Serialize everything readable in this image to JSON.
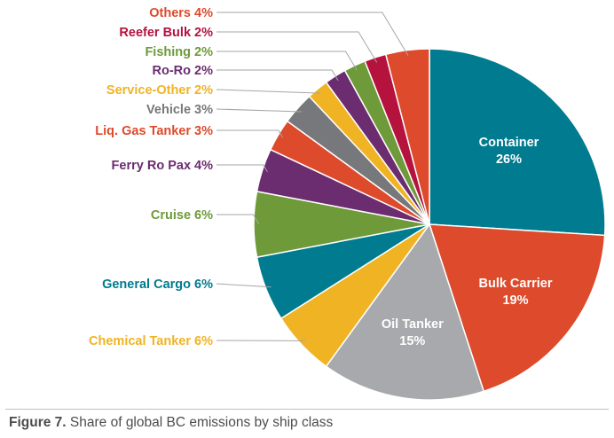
{
  "figure": {
    "prefix": "Figure 7.",
    "caption": " Share of global BC emissions by ship class"
  },
  "chart_data": {
    "type": "pie",
    "title": "",
    "unit": "%",
    "slices": [
      {
        "label": "Container",
        "value": 26,
        "color": "#007b8f",
        "value_text": "26%",
        "display": "inside"
      },
      {
        "label": "Bulk Carrier",
        "value": 19,
        "color": "#dd4a2c",
        "value_text": "19%",
        "display": "inside"
      },
      {
        "label": "Oil Tanker",
        "value": 15,
        "color": "#a7a9ac",
        "value_text": "15%",
        "display": "inside"
      },
      {
        "label": "Chemical Tanker",
        "value": 6,
        "color": "#f0b323",
        "value_text": "Chemical Tanker 6%",
        "display": "legend"
      },
      {
        "label": "General Cargo",
        "value": 6,
        "color": "#007b8f",
        "value_text": "General Cargo 6%",
        "display": "legend"
      },
      {
        "label": "Cruise",
        "value": 6,
        "color": "#6e9a3a",
        "value_text": "Cruise 6%",
        "display": "legend"
      },
      {
        "label": "Ferry Ro Pax",
        "value": 4,
        "color": "#6b2c70",
        "value_text": "Ferry Ro Pax 4%",
        "display": "legend"
      },
      {
        "label": "Liq. Gas Tanker",
        "value": 3,
        "color": "#dd4a2c",
        "value_text": "Liq. Gas Tanker 3%",
        "display": "legend"
      },
      {
        "label": "Vehicle",
        "value": 3,
        "color": "#77787b",
        "value_text": "Vehicle 3%",
        "display": "legend"
      },
      {
        "label": "Service-Other",
        "value": 2,
        "color": "#f0b323",
        "value_text": "Service-Other 2%",
        "display": "legend"
      },
      {
        "label": "Ro-Ro",
        "value": 2,
        "color": "#6b2c70",
        "value_text": "Ro-Ro 2%",
        "display": "legend"
      },
      {
        "label": "Fishing",
        "value": 2,
        "color": "#6e9a3a",
        "value_text": "Fishing 2%",
        "display": "legend"
      },
      {
        "label": "Reefer Bulk",
        "value": 2,
        "color": "#b5123e",
        "value_text": "Reefer Bulk 2%",
        "display": "legend"
      },
      {
        "label": "Others",
        "value": 4,
        "color": "#dd4a2c",
        "value_text": "Others 4%",
        "display": "legend"
      }
    ]
  }
}
